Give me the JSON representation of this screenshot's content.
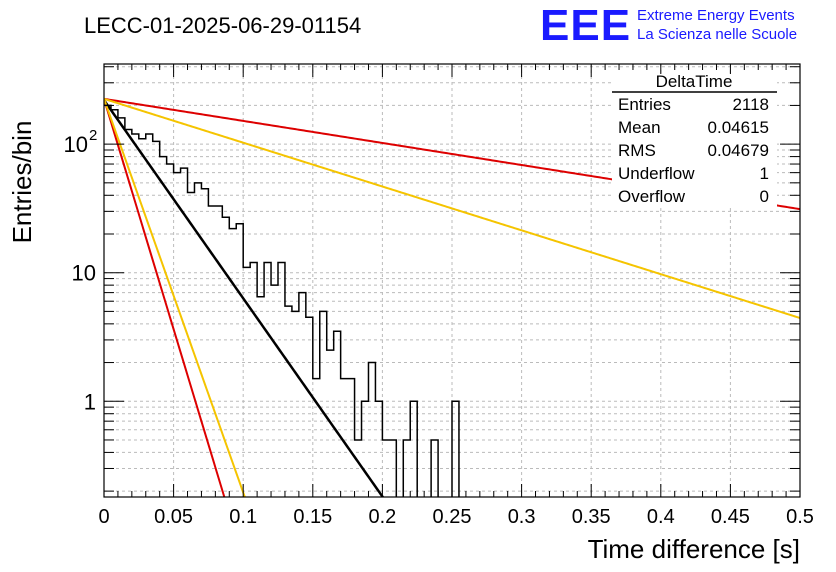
{
  "header": {
    "title": "LECC-01-2025-06-29-01154",
    "logo_text": "EEE",
    "logo_line1": "Extreme Energy Events",
    "logo_line2": "La Scienza nelle Scuole"
  },
  "stats": {
    "title": "DeltaTime",
    "rows": [
      {
        "label": "Entries",
        "value": "2118"
      },
      {
        "label": "Mean",
        "value": "0.04615"
      },
      {
        "label": "RMS",
        "value": "0.04679"
      },
      {
        "label": "Underflow",
        "value": "1"
      },
      {
        "label": "Overflow",
        "value": "0"
      }
    ]
  },
  "colors": {
    "histogram": "#000000",
    "fit": "#000000",
    "red": "#dd0000",
    "yellow": "#f5c400",
    "logo": "#1a1aff",
    "grid": "#bbbbbb"
  },
  "chart_data": {
    "type": "histogram",
    "xlabel": "Time difference [s]",
    "ylabel": "Entries/bin",
    "xlim": [
      0,
      0.5
    ],
    "ylim": [
      0.18,
      420
    ],
    "y_scale": "log",
    "grid": true,
    "x_ticks": [
      "0",
      "0.05",
      "0.1",
      "0.15",
      "0.2",
      "0.25",
      "0.3",
      "0.35",
      "0.4",
      "0.45",
      "0.5"
    ],
    "y_ticks": [
      {
        "value": 1,
        "label": "1"
      },
      {
        "value": 10,
        "label": "10"
      },
      {
        "value": 100,
        "label": "10",
        "exp": "2"
      }
    ],
    "bin_width": 0.005,
    "bin_counts": [
      200,
      185,
      160,
      130,
      120,
      110,
      120,
      105,
      80,
      70,
      60,
      65,
      42,
      50,
      45,
      33,
      33,
      27,
      22,
      24,
      11,
      12,
      6.5,
      12,
      8,
      12,
      5.5,
      5,
      7,
      4.5,
      1.5,
      5,
      2.5,
      3.5,
      1.5,
      1.5,
      0.5,
      1,
      2,
      1,
      0.5,
      0.5,
      0,
      0.5,
      1,
      0,
      0,
      0.5,
      0,
      0,
      1,
      0,
      0,
      0,
      0,
      0,
      0,
      0,
      0,
      0,
      0
    ],
    "series": [
      {
        "type": "exponential",
        "A": 220,
        "slope": -35.5,
        "x_range": [
          0,
          0.5
        ],
        "color": "black"
      },
      {
        "type": "exponential",
        "A": 225,
        "slope": -82.5,
        "x_range": [
          0,
          0.5
        ],
        "color": "red"
      },
      {
        "type": "exponential",
        "A": 225,
        "slope": -70.5,
        "x_range": [
          0,
          0.5
        ],
        "color": "yellow"
      },
      {
        "type": "exponential",
        "A": 225,
        "slope": -3.95,
        "x_range": [
          0,
          0.5
        ],
        "color": "red"
      },
      {
        "type": "exponential",
        "A": 225,
        "slope": -7.85,
        "x_range": [
          0,
          0.5
        ],
        "color": "yellow"
      }
    ]
  }
}
